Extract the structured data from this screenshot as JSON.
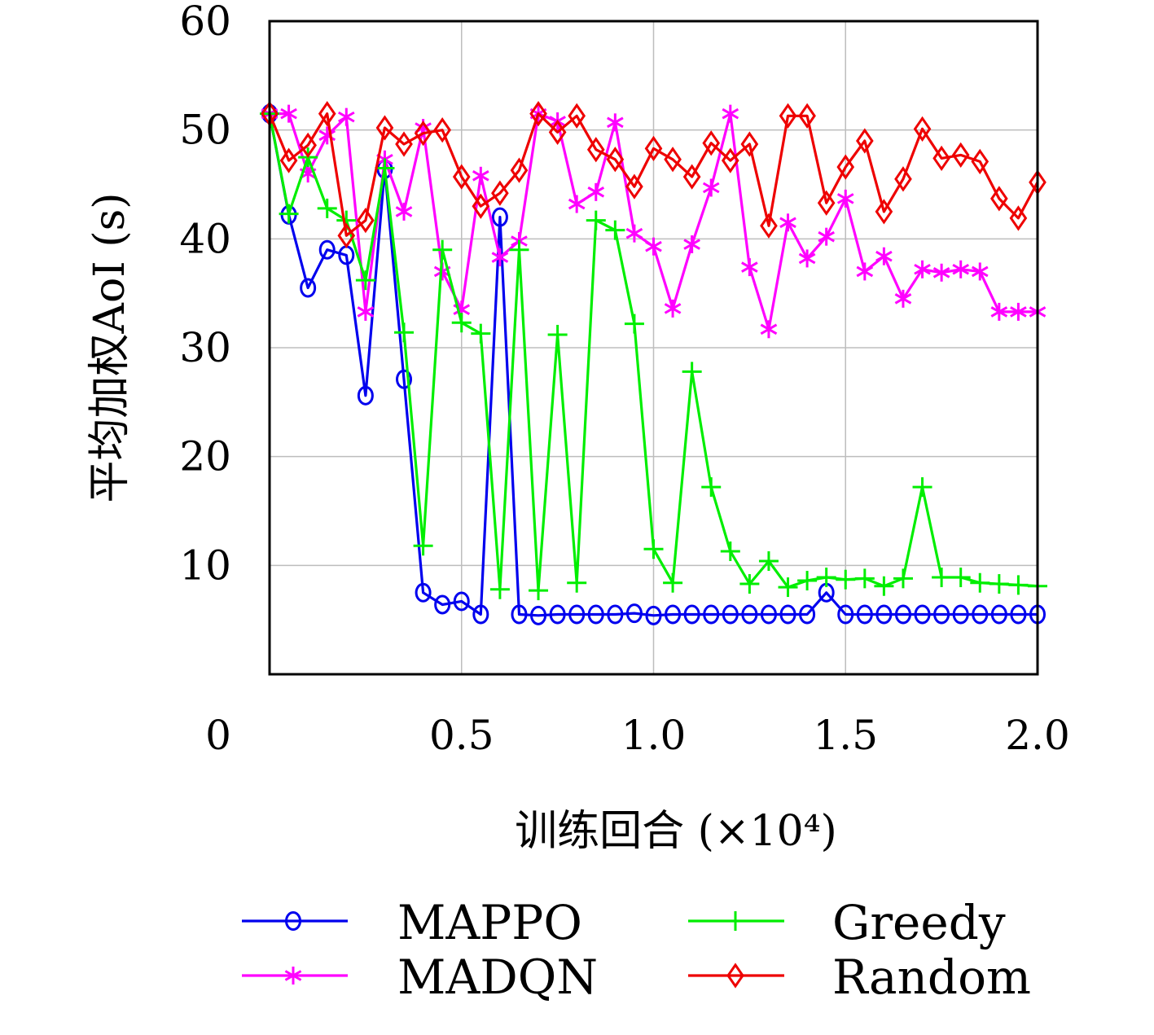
{
  "chart_data": {
    "type": "line",
    "title": "",
    "xlabel": "训练回合 (×10⁴)",
    "ylabel": "平均加权AoI (s)",
    "xlim": [
      0,
      2.0
    ],
    "ylim": [
      0,
      60
    ],
    "x_ticks": [
      "0",
      "0.5",
      "1.0",
      "1.5",
      "2.0"
    ],
    "y_ticks": [
      "10",
      "20",
      "30",
      "40",
      "50",
      "60"
    ],
    "grid": true,
    "legend_position": "bottom",
    "series": [
      {
        "name": "MAPPO",
        "color": "#0000ee",
        "marker": "circle",
        "x": [
          0.0,
          0.05,
          0.1,
          0.15,
          0.2,
          0.25,
          0.3,
          0.35,
          0.4,
          0.45,
          0.5,
          0.55,
          0.6,
          0.65,
          0.7,
          0.75,
          0.8,
          0.85,
          0.9,
          0.95,
          1.0,
          1.05,
          1.1,
          1.15,
          1.2,
          1.25,
          1.3,
          1.35,
          1.4,
          1.45,
          1.5,
          1.55,
          1.6,
          1.65,
          1.7,
          1.75,
          1.8,
          1.85,
          1.9,
          1.95,
          2.0
        ],
        "y": [
          51.5,
          42.2,
          35.5,
          39.0,
          38.5,
          25.6,
          46.4,
          27.1,
          7.5,
          6.4,
          6.7,
          5.5,
          42.0,
          5.5,
          5.4,
          5.5,
          5.5,
          5.5,
          5.5,
          5.6,
          5.4,
          5.5,
          5.5,
          5.5,
          5.5,
          5.5,
          5.5,
          5.5,
          5.5,
          7.5,
          5.5,
          5.5,
          5.5,
          5.5,
          5.5,
          5.5,
          5.5,
          5.5,
          5.5,
          5.5,
          5.5
        ]
      },
      {
        "name": "MADQN",
        "color": "#ff00ff",
        "marker": "asterisk",
        "x": [
          0.0,
          0.05,
          0.1,
          0.15,
          0.2,
          0.25,
          0.3,
          0.35,
          0.4,
          0.45,
          0.5,
          0.55,
          0.6,
          0.65,
          0.7,
          0.75,
          0.8,
          0.85,
          0.9,
          0.95,
          1.0,
          1.05,
          1.1,
          1.15,
          1.2,
          1.25,
          1.3,
          1.35,
          1.4,
          1.45,
          1.5,
          1.55,
          1.6,
          1.65,
          1.7,
          1.75,
          1.8,
          1.85,
          1.9,
          1.95,
          2.0
        ],
        "y": [
          51.5,
          51.5,
          46.0,
          49.5,
          51.2,
          33.3,
          47.3,
          42.5,
          50.2,
          37.0,
          33.5,
          45.8,
          38.3,
          39.8,
          51.5,
          50.8,
          43.2,
          44.3,
          50.7,
          40.5,
          39.3,
          33.6,
          39.5,
          44.7,
          51.5,
          37.4,
          31.7,
          41.5,
          38.2,
          40.2,
          43.7,
          37.0,
          38.4,
          34.5,
          37.2,
          36.9,
          37.2,
          37.0,
          33.3,
          33.3,
          33.3
        ]
      },
      {
        "name": "Greedy",
        "color": "#00ee00",
        "marker": "plus",
        "x": [
          0.0,
          0.05,
          0.1,
          0.15,
          0.2,
          0.25,
          0.3,
          0.35,
          0.4,
          0.45,
          0.5,
          0.55,
          0.6,
          0.65,
          0.7,
          0.75,
          0.8,
          0.85,
          0.9,
          0.95,
          1.0,
          1.05,
          1.1,
          1.15,
          1.2,
          1.25,
          1.3,
          1.35,
          1.4,
          1.45,
          1.5,
          1.55,
          1.6,
          1.65,
          1.7,
          1.75,
          1.8,
          1.85,
          1.9,
          1.95,
          2.0
        ],
        "y": [
          51.5,
          42.3,
          47.5,
          42.8,
          41.7,
          36.2,
          46.5,
          31.4,
          11.8,
          39.0,
          32.3,
          31.3,
          7.8,
          39.0,
          7.7,
          31.2,
          8.4,
          41.7,
          40.8,
          32.2,
          11.5,
          8.4,
          27.8,
          17.2,
          11.3,
          8.3,
          10.4,
          8.0,
          8.6,
          8.9,
          8.7,
          8.8,
          8.1,
          8.8,
          17.2,
          8.9,
          8.9,
          8.4,
          8.3,
          8.2,
          8.1
        ]
      },
      {
        "name": "Random",
        "color": "#ee0000",
        "marker": "diamond",
        "x": [
          0.0,
          0.05,
          0.1,
          0.15,
          0.2,
          0.25,
          0.3,
          0.35,
          0.4,
          0.45,
          0.5,
          0.55,
          0.6,
          0.65,
          0.7,
          0.75,
          0.8,
          0.85,
          0.9,
          0.95,
          1.0,
          1.05,
          1.1,
          1.15,
          1.2,
          1.25,
          1.3,
          1.35,
          1.4,
          1.45,
          1.5,
          1.55,
          1.6,
          1.65,
          1.7,
          1.75,
          1.8,
          1.85,
          1.9,
          1.95,
          2.0
        ],
        "y": [
          51.5,
          47.2,
          48.6,
          51.5,
          40.3,
          41.7,
          50.2,
          48.7,
          49.7,
          50.0,
          45.7,
          43.0,
          44.2,
          46.3,
          51.5,
          49.8,
          51.3,
          48.2,
          47.3,
          44.8,
          48.3,
          47.3,
          45.7,
          48.8,
          47.2,
          48.7,
          41.2,
          51.3,
          51.3,
          43.3,
          46.6,
          49.0,
          42.5,
          45.5,
          50.1,
          47.4,
          47.7,
          47.1,
          43.7,
          41.9,
          45.2
        ]
      }
    ]
  }
}
